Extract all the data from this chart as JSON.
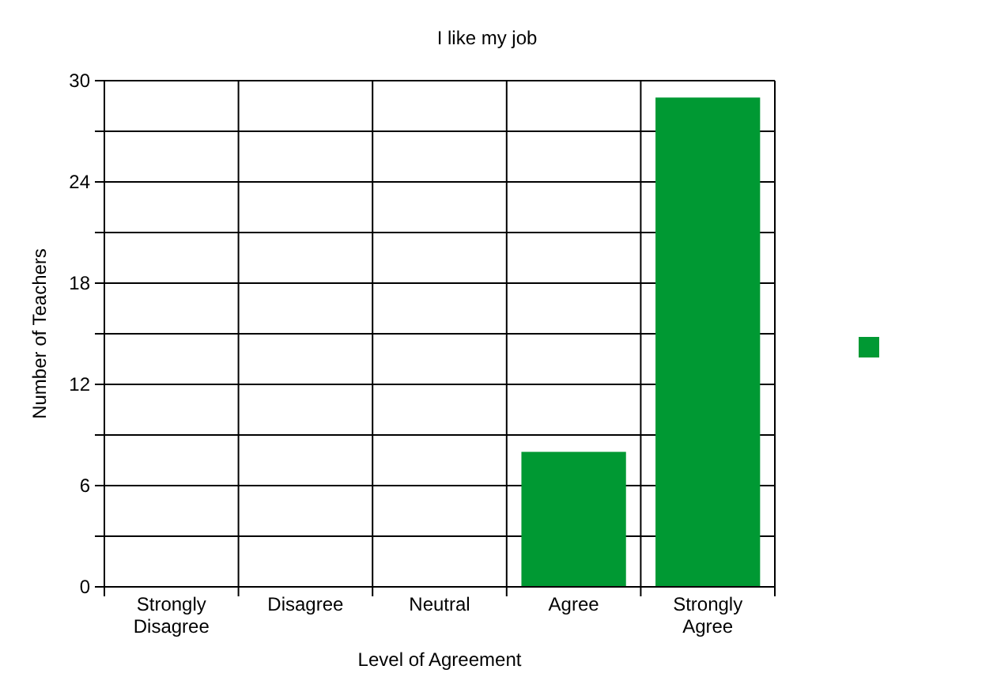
{
  "chart_data": {
    "type": "bar",
    "title": "I like my job",
    "xlabel": "Level of Agreement",
    "ylabel": "Number of Teachers",
    "categories": [
      "Strongly Disagree",
      "Disagree",
      "Neutral",
      "Agree",
      "Strongly Agree"
    ],
    "series": [
      {
        "color": "#009933",
        "values": [
          0,
          0,
          0,
          8,
          29
        ]
      }
    ],
    "ylim": [
      0,
      30
    ],
    "yticks": [
      0,
      {
        "value": 3,
        "label": null
      },
      6,
      {
        "value": 9,
        "label": null
      },
      12,
      {
        "value": 15,
        "label": null
      },
      18,
      {
        "value": 21,
        "label": null
      },
      24,
      {
        "value": 27,
        "label": null
      },
      30
    ],
    "grid": true
  }
}
